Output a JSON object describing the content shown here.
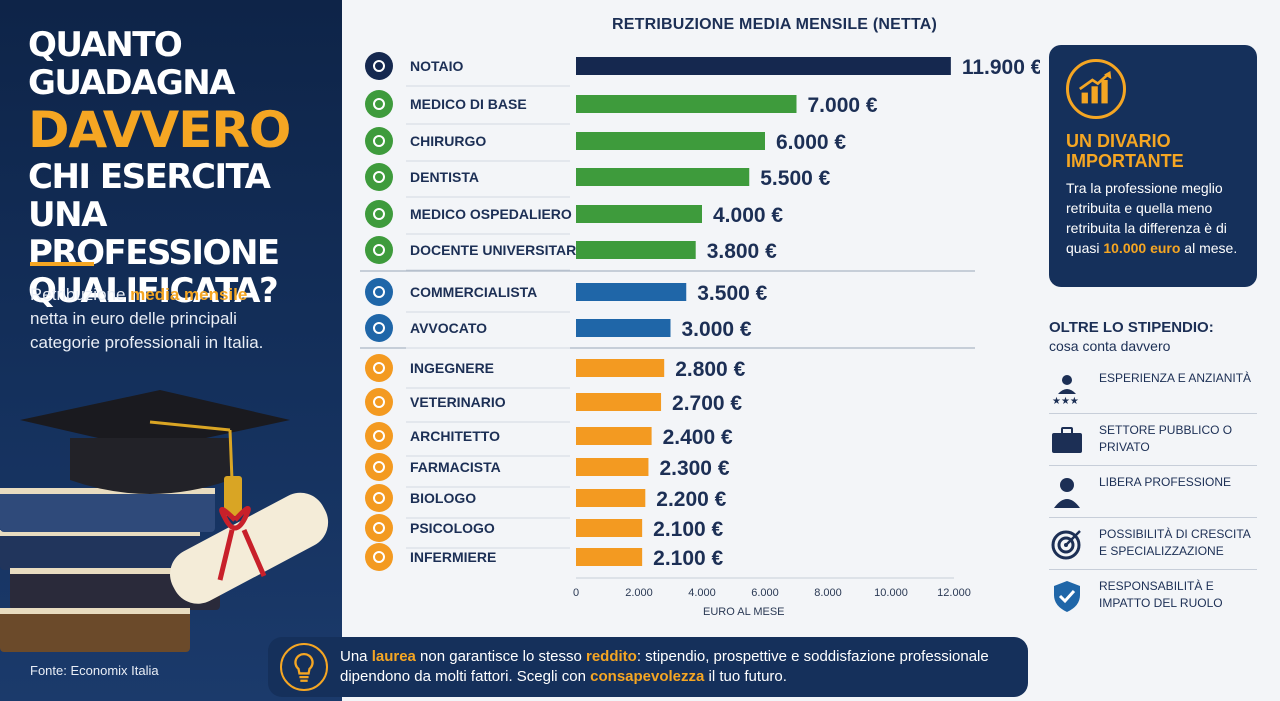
{
  "left": {
    "title_line1": "QUANTO GUADAGNA",
    "title_accent": "DAVVERO",
    "title_line3": "CHI ESERCITA UNA PROFESSIONE QUALIFICATA?",
    "sub_pre": "Retribuzione ",
    "sub_hl": "media mensile",
    "sub_post": " netta in euro delle principali categorie professionali in Italia.",
    "source": "Fonte: Economix Italia"
  },
  "chart_data": {
    "type": "bar",
    "orientation": "horizontal",
    "title": "RETRIBUZIONE MEDIA MENSILE (NETTA)",
    "xlabel": "EURO AL MESE",
    "xlim": [
      0,
      12000
    ],
    "xticks": [
      "0",
      "2.000",
      "4.000",
      "6.000",
      "8.000",
      "10.000",
      "12.000"
    ],
    "categories": [
      "NOTAIO",
      "MEDICO DI BASE",
      "CHIRURGO",
      "DENTISTA",
      "MEDICO OSPEDALIERO",
      "DOCENTE UNIVERSITARIO",
      "COMMERCIALISTA",
      "AVVOCATO",
      "INGEGNERE",
      "VETERINARIO",
      "ARCHITETTO",
      "FARMACISTA",
      "BIOLOGO",
      "PSICOLOGO",
      "INFERMIERE"
    ],
    "values": [
      11900,
      7000,
      6000,
      5500,
      4000,
      3800,
      3500,
      3000,
      2800,
      2700,
      2400,
      2300,
      2200,
      2100,
      2100
    ],
    "value_labels": [
      "11.900 €",
      "7.000 €",
      "6.000 €",
      "5.500 €",
      "4.000 €",
      "3.800 €",
      "3.500 €",
      "3.000 €",
      "2.800 €",
      "2.700 €",
      "2.400 €",
      "2.300 €",
      "2.200 €",
      "2.100 €",
      "2.100 €"
    ],
    "colors": [
      "#15284f",
      "#3e9b3c",
      "#3e9b3c",
      "#3e9b3c",
      "#3e9b3c",
      "#3e9b3c",
      "#1f66a8",
      "#1f66a8",
      "#f39a21",
      "#f39a21",
      "#f39a21",
      "#f39a21",
      "#f39a21",
      "#f39a21",
      "#f39a21"
    ],
    "icons": [
      "pen-icon",
      "stethoscope-icon",
      "scalpel-icon",
      "tooth-icon",
      "hospital-icon",
      "graduation-cap-icon",
      "calculator-icon",
      "scales-icon",
      "hardhat-icon",
      "paw-icon",
      "architect-icon",
      "pill-icon",
      "dna-icon",
      "psi-icon",
      "cross-icon"
    ]
  },
  "box": {
    "title": "UN DIVARIO IMPORTANTE",
    "text_pre": "Tra la professione meglio retribuita e quella meno retribuita la differenza è di quasi ",
    "text_hl": "10.000 euro",
    "text_post": " al mese.",
    "icon": "growth-chart-icon"
  },
  "factors": {
    "title": "OLTRE LO STIPENDIO:",
    "subtitle": "cosa conta davvero",
    "items": [
      {
        "label": "ESPERIENZA E ANZIANITÀ",
        "icon": "person-stars-icon"
      },
      {
        "label": "SETTORE PUBBLICO O PRIVATO",
        "icon": "briefcase-icon"
      },
      {
        "label": "LIBERA PROFESSIONE",
        "icon": "person-icon"
      },
      {
        "label": "POSSIBILITÀ DI CRESCITA E SPECIALIZZAZIONE",
        "icon": "target-icon"
      },
      {
        "label": "RESPONSABILITÀ E IMPATTO DEL RUOLO",
        "icon": "shield-check-icon"
      }
    ]
  },
  "note": {
    "p1": "Una ",
    "h1": "laurea",
    "p2": " non garantisce lo stesso ",
    "h2": "reddito",
    "p3": ": stipendio, prospettive e soddisfazione professionale dipendono da molti fattori. Scegli con ",
    "h3": "consapevolezza",
    "p4": " il tuo futuro.",
    "icon": "lightbulb-icon"
  },
  "colors": {
    "navy": "#15305b",
    "accent": "#f5a623",
    "green": "#3e9b3c",
    "blue": "#1f66a8",
    "orange": "#f39a21"
  }
}
